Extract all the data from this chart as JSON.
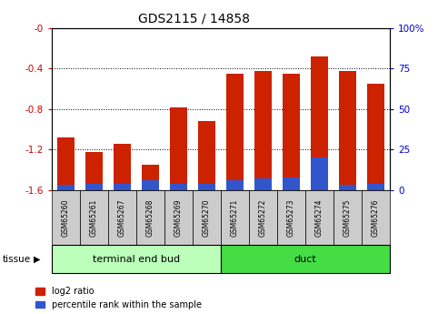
{
  "title": "GDS2115 / 14858",
  "samples": [
    "GSM65260",
    "GSM65261",
    "GSM65267",
    "GSM65268",
    "GSM65269",
    "GSM65270",
    "GSM65271",
    "GSM65272",
    "GSM65273",
    "GSM65274",
    "GSM65275",
    "GSM65276"
  ],
  "log2_ratio": [
    -1.08,
    -1.22,
    -1.14,
    -1.35,
    -0.78,
    -0.92,
    -0.45,
    -0.42,
    -0.45,
    -0.28,
    -0.42,
    -0.55
  ],
  "percentile_rank": [
    3,
    4,
    4,
    6,
    4,
    4,
    6,
    7,
    8,
    20,
    3,
    4
  ],
  "ylim_left": [
    -1.6,
    0.0
  ],
  "ylim_right": [
    0,
    100
  ],
  "left_yticks": [
    0.0,
    -0.4,
    -0.8,
    -1.2,
    -1.6
  ],
  "left_yticklabels": [
    "-0",
    "-0.4",
    "-0.8",
    "-1.2",
    "-1.6"
  ],
  "right_yticks": [
    100,
    75,
    50,
    25,
    0
  ],
  "right_yticklabels": [
    "100%",
    "75",
    "50",
    "25",
    "0"
  ],
  "bar_color_red": "#cc2200",
  "bar_color_blue": "#3355cc",
  "groups": [
    {
      "label": "terminal end bud",
      "start": 0,
      "end": 6,
      "color": "#bbffbb"
    },
    {
      "label": "duct",
      "start": 6,
      "end": 12,
      "color": "#44dd44"
    }
  ],
  "tissue_label": "tissue",
  "legend_red": "log2 ratio",
  "legend_blue": "percentile rank within the sample",
  "sample_box_color": "#cccccc",
  "bar_width": 0.6,
  "left_color": "#cc0000",
  "right_color": "#0000cc"
}
